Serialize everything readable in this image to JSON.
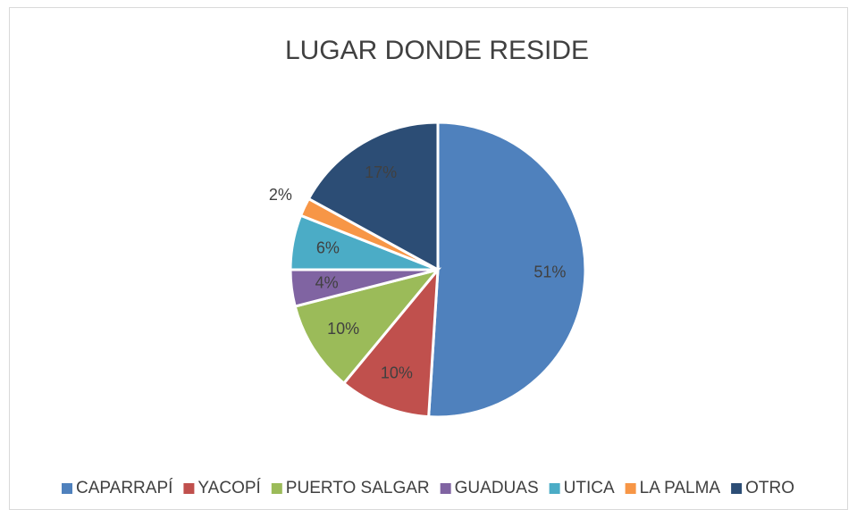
{
  "chart_data": {
    "type": "pie",
    "title": "LUGAR DONDE RESIDE",
    "categories": [
      "CAPARRAPÍ",
      "YACOPÍ",
      "PUERTO SALGAR",
      "GUADUAS",
      "UTICA",
      "LA PALMA",
      "OTRO"
    ],
    "values": [
      51,
      10,
      10,
      4,
      6,
      2,
      17
    ],
    "value_labels": [
      "51%",
      "10%",
      "10%",
      "4%",
      "6%",
      "2%",
      "17%"
    ],
    "colors": [
      "#4f81bd",
      "#c0504d",
      "#9bbb59",
      "#8064a2",
      "#4bacc6",
      "#f79646",
      "#2c4d75"
    ],
    "legend": "bottom"
  }
}
